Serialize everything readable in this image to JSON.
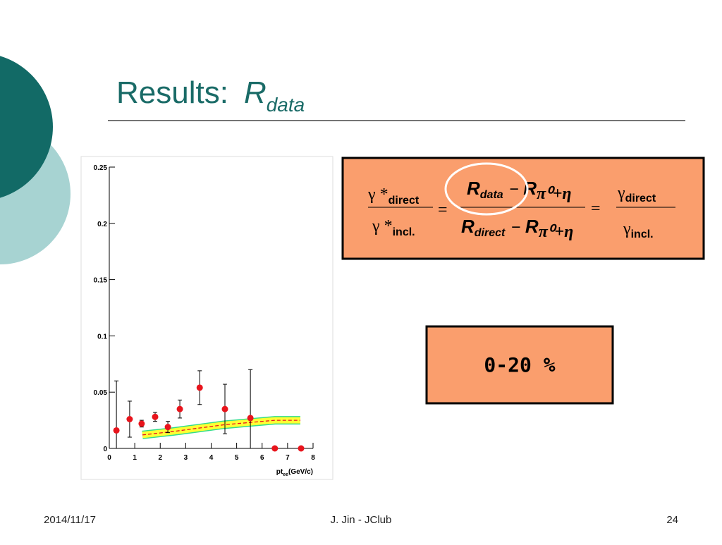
{
  "slide": {
    "title": "Results:",
    "title_symbol": "R",
    "title_subscript": "data",
    "box_label": "0-20 %",
    "date": "2014/11/17",
    "footer": "J. Jin - JClub",
    "page": "24"
  },
  "formula": {
    "lhs_num": [
      "γ *",
      "direct"
    ],
    "lhs_den": [
      "γ *",
      "incl."
    ],
    "eq": "=",
    "mid_num": [
      "R",
      "data",
      "−",
      "R",
      "π⁰+η"
    ],
    "mid_den": [
      "R",
      "direct",
      "−",
      "R",
      "π⁰+η"
    ],
    "rhs_num": [
      "γ",
      "direct"
    ],
    "rhs_den": [
      "γ",
      "incl."
    ]
  },
  "chart_data": {
    "type": "scatter",
    "x_label": "pt",
    "x_label_sub": "ee",
    "x_label_unit": "(GeV/c)",
    "xlim": [
      0,
      8
    ],
    "ylim": [
      0,
      0.25
    ],
    "xticks": [
      0,
      1,
      2,
      3,
      4,
      5,
      6,
      7,
      8
    ],
    "yticks": [
      0,
      0.05,
      0.1,
      0.15,
      0.2,
      0.25
    ],
    "series": [
      {
        "color": "#e8141c",
        "x": [
          0.28,
          0.8,
          1.27,
          1.8,
          2.3,
          2.77,
          3.55,
          4.54,
          5.54,
          6.5,
          7.53
        ],
        "values": [
          0.016,
          0.026,
          0.022,
          0.028,
          0.019,
          0.035,
          0.054,
          0.035,
          0.027,
          0,
          0
        ],
        "errors": [
          0.044,
          0.016,
          0.003,
          0.004,
          0.005,
          0.008,
          0.015,
          0.022,
          0.043,
          0,
          0
        ]
      },
      {
        "color": "#e8141c",
        "band_color": "#ffff33",
        "x": [
          1.3,
          2.5,
          3.5,
          4.5,
          5.5,
          6.5,
          7.5
        ],
        "values": [
          0.012,
          0.015,
          0.018,
          0.021,
          0.023,
          0.025,
          0.025
        ]
      }
    ]
  }
}
